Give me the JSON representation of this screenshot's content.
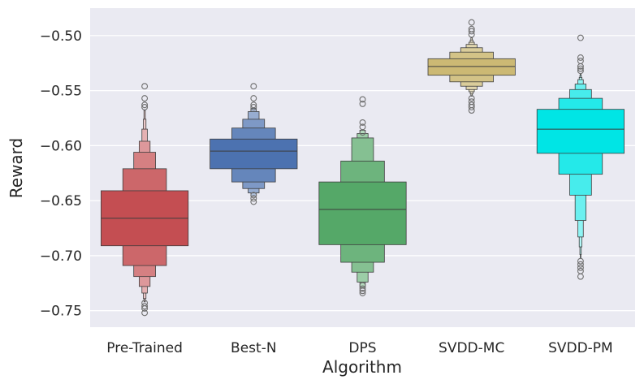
{
  "chart_data": {
    "type": "boxen",
    "xlabel": "Algorithm",
    "ylabel": "Reward",
    "ylim": [
      -0.765,
      -0.475
    ],
    "yticks": [
      -0.75,
      -0.7,
      -0.65,
      -0.6,
      -0.55,
      -0.5
    ],
    "ytick_labels": [
      "−0.75",
      "−0.70",
      "−0.65",
      "−0.60",
      "−0.55",
      "−0.50"
    ],
    "grid": true,
    "background": "#eaeaf2",
    "series": [
      {
        "name": "Pre-Trained",
        "color": "#c44e52",
        "median": -0.666,
        "levels": [
          {
            "low": -0.691,
            "high": -0.641
          },
          {
            "low": -0.709,
            "high": -0.621
          },
          {
            "low": -0.719,
            "high": -0.606
          },
          {
            "low": -0.728,
            "high": -0.596
          },
          {
            "low": -0.734,
            "high": -0.585
          },
          {
            "low": -0.739,
            "high": -0.576
          },
          {
            "low": -0.742,
            "high": -0.568
          }
        ],
        "outliers": [
          -0.546,
          -0.557,
          -0.563,
          -0.565,
          -0.743,
          -0.746,
          -0.748,
          -0.752
        ]
      },
      {
        "name": "Best-N",
        "color": "#4c72b0",
        "median": -0.605,
        "levels": [
          {
            "low": -0.621,
            "high": -0.594
          },
          {
            "low": -0.633,
            "high": -0.584
          },
          {
            "low": -0.639,
            "high": -0.576
          },
          {
            "low": -0.643,
            "high": -0.569
          },
          {
            "low": -0.646,
            "high": -0.566
          }
        ],
        "outliers": [
          -0.546,
          -0.557,
          -0.563,
          -0.565,
          -0.645,
          -0.648,
          -0.651
        ]
      },
      {
        "name": "DPS",
        "color": "#55a868",
        "median": -0.658,
        "levels": [
          {
            "low": -0.69,
            "high": -0.633
          },
          {
            "low": -0.706,
            "high": -0.614
          },
          {
            "low": -0.715,
            "high": -0.593
          },
          {
            "low": -0.724,
            "high": -0.589
          },
          {
            "low": -0.729,
            "high": -0.586
          }
        ],
        "outliers": [
          -0.558,
          -0.562,
          -0.579,
          -0.583,
          -0.588,
          -0.727,
          -0.73,
          -0.732,
          -0.734
        ]
      },
      {
        "name": "SVDD-MC",
        "color": "#ccb974",
        "median": -0.528,
        "levels": [
          {
            "low": -0.536,
            "high": -0.521
          },
          {
            "low": -0.542,
            "high": -0.515
          },
          {
            "low": -0.546,
            "high": -0.511
          },
          {
            "low": -0.549,
            "high": -0.508
          },
          {
            "low": -0.551,
            "high": -0.506
          },
          {
            "low": -0.553,
            "high": -0.504
          },
          {
            "low": -0.555,
            "high": -0.502
          }
        ],
        "outliers": [
          -0.488,
          -0.494,
          -0.496,
          -0.499,
          -0.557,
          -0.56,
          -0.563,
          -0.565,
          -0.568
        ]
      },
      {
        "name": "SVDD-PM",
        "color": "#00e5e5",
        "median": -0.585,
        "levels": [
          {
            "low": -0.607,
            "high": -0.567
          },
          {
            "low": -0.626,
            "high": -0.557
          },
          {
            "low": -0.645,
            "high": -0.549
          },
          {
            "low": -0.668,
            "high": -0.544
          },
          {
            "low": -0.683,
            "high": -0.54
          },
          {
            "low": -0.692,
            "high": -0.538
          },
          {
            "low": -0.699,
            "high": -0.536
          },
          {
            "low": -0.702,
            "high": -0.535
          }
        ],
        "outliers": [
          -0.502,
          -0.52,
          -0.523,
          -0.528,
          -0.53,
          -0.532,
          -0.705,
          -0.708,
          -0.711,
          -0.714,
          -0.719
        ]
      }
    ]
  }
}
